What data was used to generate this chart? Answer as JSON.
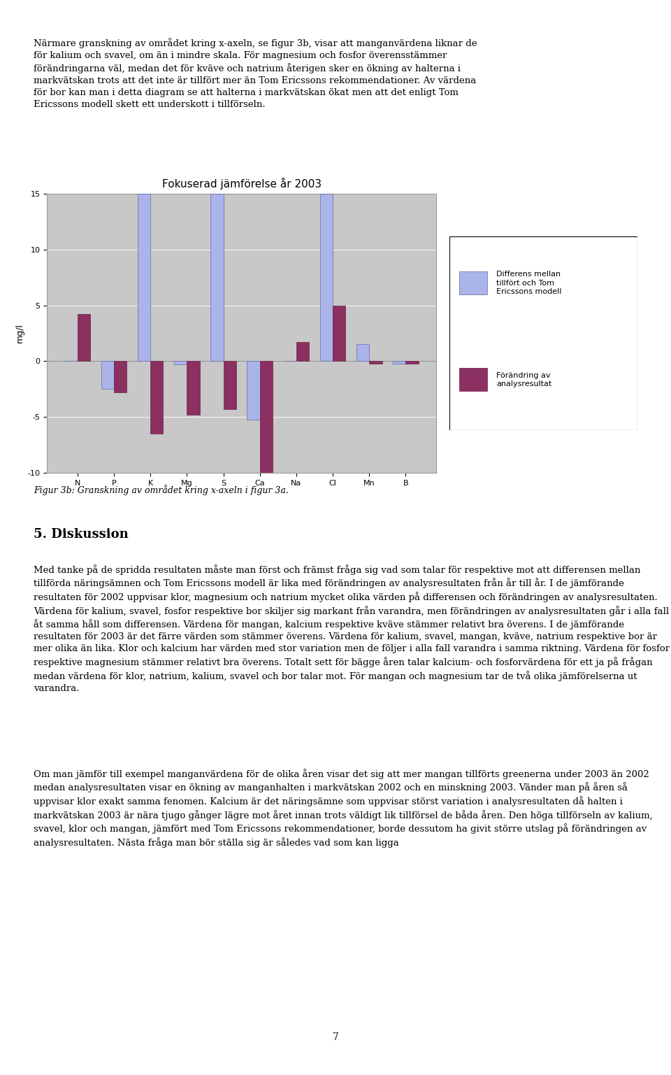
{
  "title": "Fokuserad jämförelse år 2003",
  "ylabel": "mg/l",
  "categories": [
    "N",
    "P",
    "K",
    "Mg",
    "S",
    "Ca",
    "Na",
    "Cl",
    "Mn",
    "B"
  ],
  "series1_name": "Differens mellan\ntillfört och Tom\nEricssons modell",
  "series2_name": "Förändring av\nanalysresultat",
  "series1_values": [
    0,
    -2.5,
    15,
    -0.3,
    15,
    -5.2,
    0.0,
    15,
    1.5,
    -0.2
  ],
  "series2_values": [
    4.2,
    -2.8,
    -6.5,
    -4.8,
    -4.3,
    -10.5,
    1.7,
    5.0,
    -0.2,
    -0.2
  ],
  "series1_color": "#aab4e8",
  "series2_color": "#8b3060",
  "ylim": [
    -10,
    15
  ],
  "yticks": [
    -10,
    -5,
    0,
    5,
    10,
    15
  ],
  "background_color": "#ffffff",
  "plot_area_color": "#c8c8c8",
  "bar_width": 0.35,
  "title_fontsize": 11,
  "axis_fontsize": 9,
  "tick_fontsize": 8,
  "legend_fontsize": 8,
  "text_top": "Närmare granskning av området kring x-axeln, se figur 3b, visar att manganvärdena liknar de\nför kalium och svavel, om än i mindre skala. För magnesium och fosfor överensstämmer\nförändringarna väl, medan det för kväve och natrium återigen sker en ökning av halterna i\nmarkvätskan trots att det inte är tillfört mer än Tom Ericssons rekommendationer. Av värdena\nför bor kan man i detta diagram se att halterna i markvätskan ökat men att det enligt Tom\nEricssons modell skett ett underskott i tillförseln.",
  "caption": "Figur 3b: Granskning av området kring x-axeln i figur 3a.",
  "text_section": "5. Diskussion",
  "text_body1": "Med tanke på de spridda resultaten måste man först och främst fråga sig vad som talar för respektive mot att differensen mellan tillförda näringsämnen och Tom Ericssons modell är lika med förändringen av analysresultaten från år till år. I de jämförande resultaten för 2002 uppvisar klor, magnesium och natrium mycket olika värden på differensen och förändringen av analysresultaten. Värdena för kalium, svavel, fosfor respektive bor skiljer sig markant från varandra, men förändringen av analysresultaten går i alla fall åt samma håll som differensen. Värdena för mangan, kalcium respektive kväve stämmer relativt bra överens. I de jämförande resultaten för 2003 är det färre värden som stämmer överens. Värdena för kalium, svavel, mangan, kväve, natrium respektive bor är mer olika än lika. Klor och kalcium har värden med stor variation men de följer i alla fall varandra i samma riktning. Värdena för fosfor respektive magnesium stämmer relativt bra överens. Totalt sett för bägge åren talar kalcium- och fosforvärdena för ett ja på frågan medan värdena för klor, natrium, kalium, svavel och bor talar mot. För mangan och magnesium tar de två olika jämförelserna ut varandra.",
  "text_body2": "Om man jämför till exempel manganvärdena för de olika åren visar det sig att mer mangan tillförts greenerna under 2003 än 2002 medan analysresultaten visar en ökning av manganhalten i markvätskan 2002 och en minskning 2003. Vänder man på åren så uppvisar klor exakt samma fenomen. Kalcium är det näringsämne som uppvisar störst variation i analysresultaten då halten i markvätskan 2003 är nära tjugo gånger lägre mot året innan trots väldigt lik tillförsel de båda åren. Den höga tillförseln av kalium, svavel, klor och mangan, jämfört med Tom Ericssons rekommendationer, borde dessutom ha givit större utslag på förändringen av analysresultaten. Nästa fråga man bör ställa sig är således vad som kan ligga",
  "page_number": "7"
}
